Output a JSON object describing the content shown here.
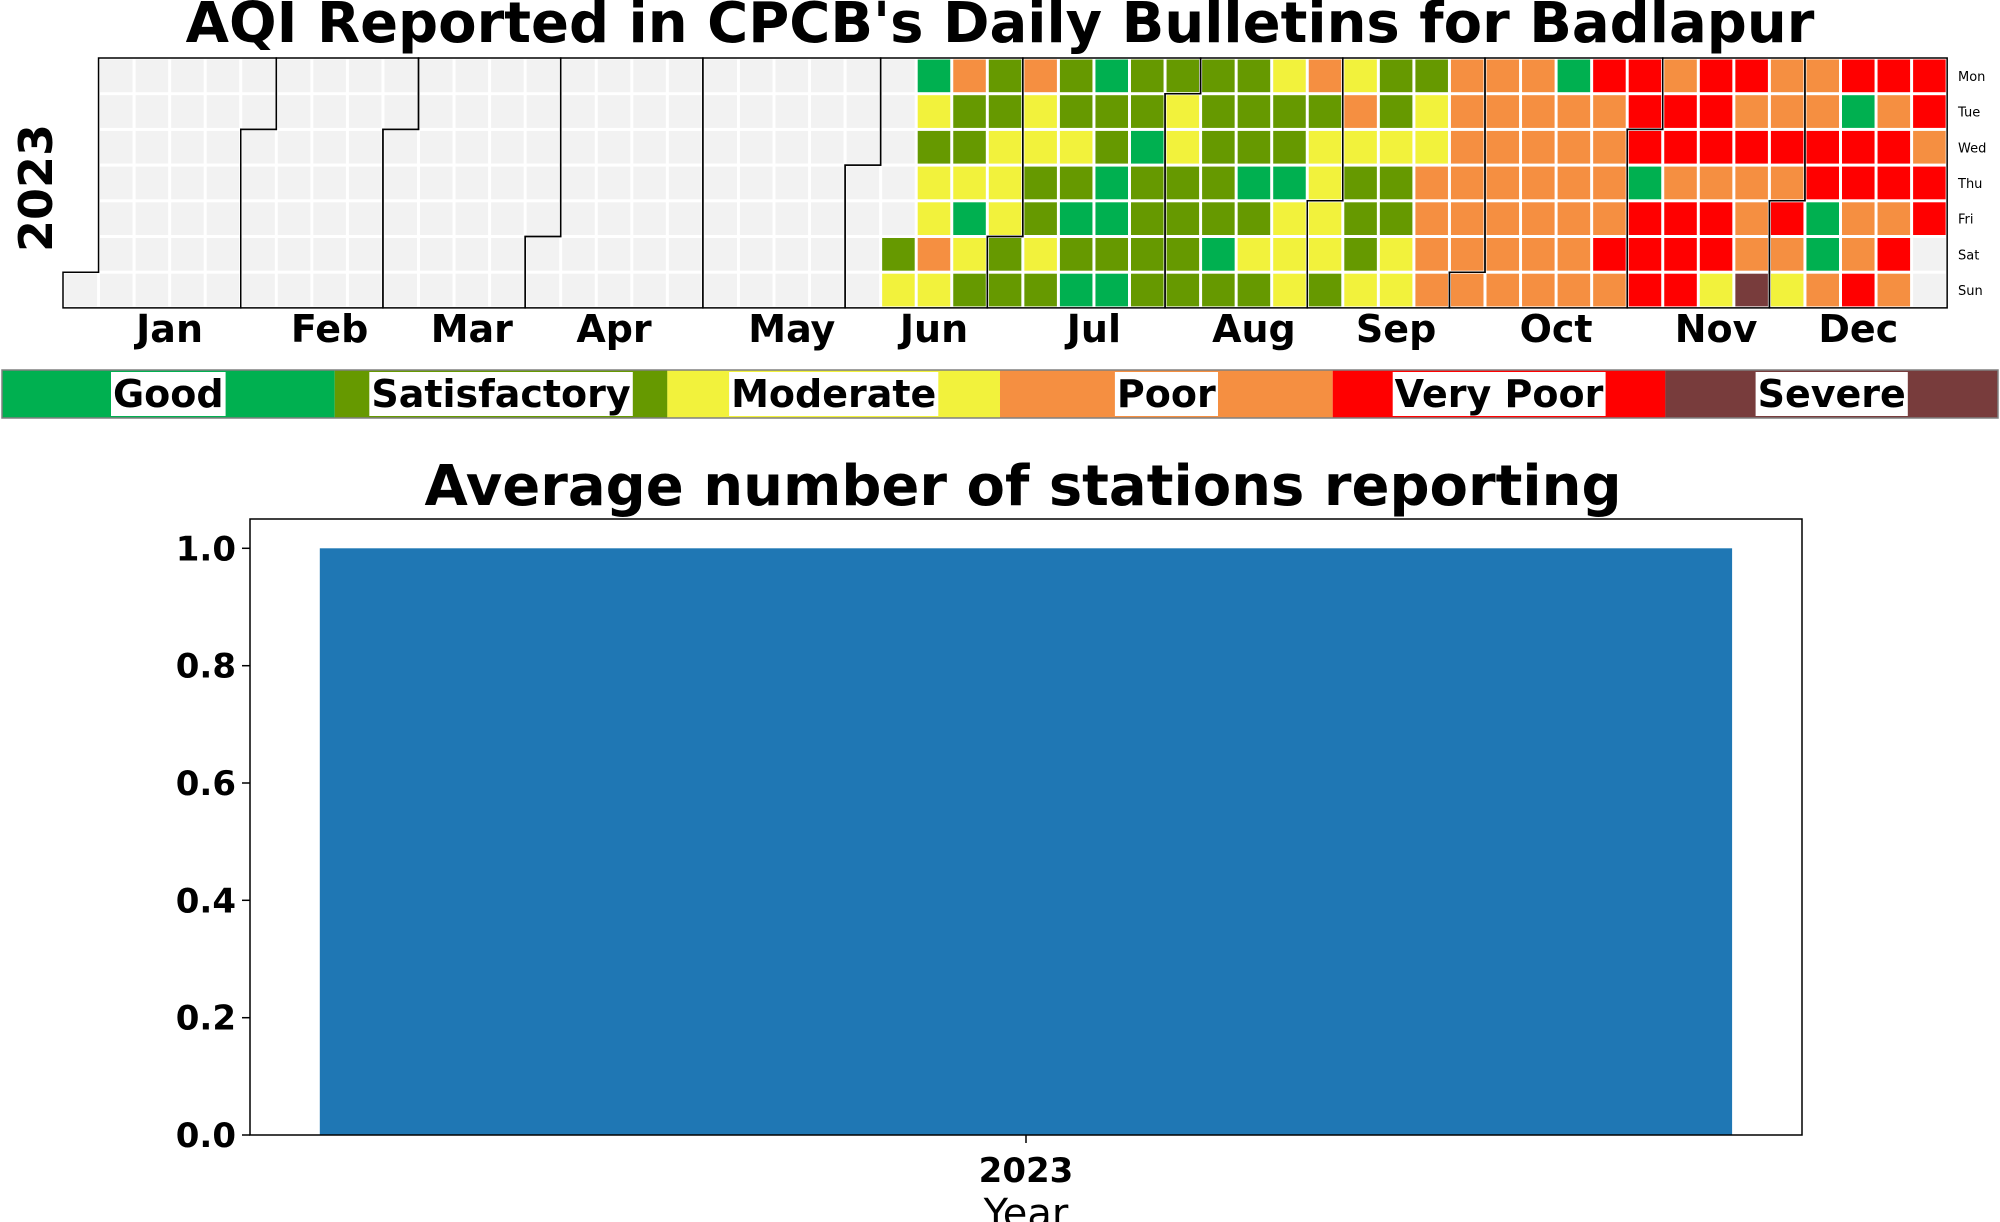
{
  "figure_title": "AQI Reported in CPCB's Daily Bulletins for Badlapur",
  "chart_data": [
    {
      "type": "heatmap",
      "title": "AQI Reported in CPCB's Daily Bulletins for Badlapur",
      "year": "2023",
      "months": [
        "Jan",
        "Feb",
        "Mar",
        "Apr",
        "May",
        "Jun",
        "Jul",
        "Aug",
        "Sep",
        "Oct",
        "Nov",
        "Dec"
      ],
      "weekdays": [
        "Mon",
        "Tue",
        "Wed",
        "Thu",
        "Fri",
        "Sat",
        "Sun"
      ],
      "categories": [
        "Good",
        "Satisfactory",
        "Moderate",
        "Poor",
        "Very Poor",
        "Severe"
      ],
      "colors": {
        "Good": "#00b050",
        "Satisfactory": "#669900",
        "Moderate": "#f2f23c",
        "Poor": "#f58f41",
        "Very Poor": "#ff0000",
        "Severe": "#783c3c",
        "no_data": "#f2f2f2"
      },
      "first_reported_date": "2023-06-10",
      "daily_categories_from_first_date": "SMGMSMMPMPSSMGMSSSMMMSSPMMSSMSSSMSGSGGSSGGSGSSGSSSSSMMSSSSSSSSSGSSSSGSMSMSSGMMMPSMMMMSMPMSSSMSSMSSMMSMMPPPPPPPPPPPPPPPPPPPPPPPPPGPPPPPPVPPPPVPVVVGVVVPVVPVVVVVVPVVMVPVPPPXPPVPVPMPPVVGGPVGVVPPVVPVVPVPVVPVV",
      "code_legend": {
        "G": "Good",
        "S": "Satisfactory",
        "M": "Moderate",
        "P": "Poor",
        "V": "Very Poor",
        "X": "Severe"
      }
    },
    {
      "type": "bar",
      "title": "Average number of stations reporting",
      "categories": [
        "2023"
      ],
      "values": [
        1.0
      ],
      "xlabel": "Year",
      "ylabel": "",
      "ylim": [
        0,
        1.05
      ],
      "yticks": [
        "0.0",
        "0.2",
        "0.4",
        "0.6",
        "0.8",
        "1.0"
      ],
      "bar_color": "#1f77b4"
    }
  ]
}
